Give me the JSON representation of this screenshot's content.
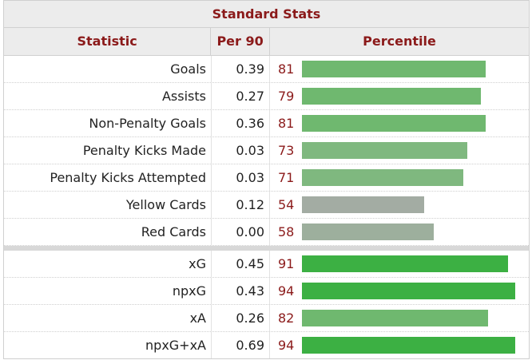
{
  "title": "Standard Stats",
  "columns": {
    "statistic": "Statistic",
    "per90": "Per 90",
    "percentile": "Percentile"
  },
  "colors": {
    "accent": "#8b1a1a",
    "bar_high": "#3cb043",
    "bar_mid": "#6fb86f",
    "bar_mid2": "#7fb87f",
    "bar_low": "#a3aca3",
    "bar_low2": "#9daf9d"
  },
  "group1": [
    {
      "stat": "Goals",
      "per90": "0.39",
      "percentile": 81,
      "color": "#6fb86f"
    },
    {
      "stat": "Assists",
      "per90": "0.27",
      "percentile": 79,
      "color": "#6fb86f"
    },
    {
      "stat": "Non-Penalty Goals",
      "per90": "0.36",
      "percentile": 81,
      "color": "#6fb86f"
    },
    {
      "stat": "Penalty Kicks Made",
      "per90": "0.03",
      "percentile": 73,
      "color": "#7fb87f"
    },
    {
      "stat": "Penalty Kicks Attempted",
      "per90": "0.03",
      "percentile": 71,
      "color": "#7fb87f"
    },
    {
      "stat": "Yellow Cards",
      "per90": "0.12",
      "percentile": 54,
      "color": "#a3aca3"
    },
    {
      "stat": "Red Cards",
      "per90": "0.00",
      "percentile": 58,
      "color": "#9daf9d"
    }
  ],
  "group2": [
    {
      "stat": "xG",
      "per90": "0.45",
      "percentile": 91,
      "color": "#3cb043"
    },
    {
      "stat": "npxG",
      "per90": "0.43",
      "percentile": 94,
      "color": "#3cb043"
    },
    {
      "stat": "xA",
      "per90": "0.26",
      "percentile": 82,
      "color": "#6fb86f"
    },
    {
      "stat": "npxG+xA",
      "per90": "0.69",
      "percentile": 94,
      "color": "#3cb043"
    }
  ]
}
